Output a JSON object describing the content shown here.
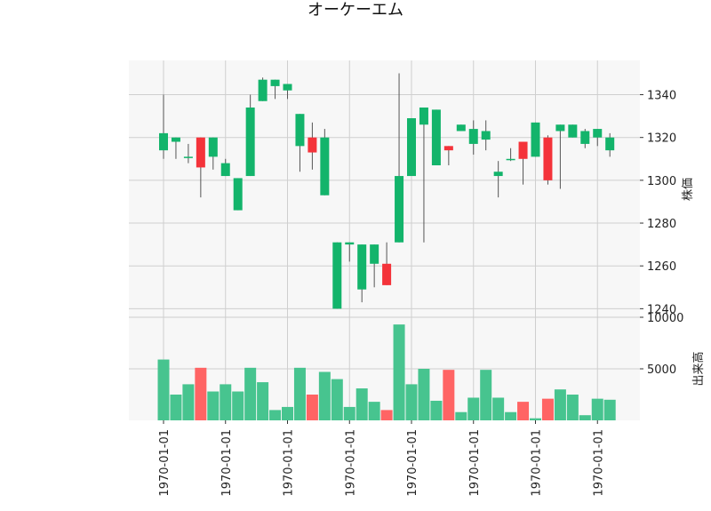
{
  "chart_data": {
    "type": "candlestick",
    "title": "オーケーエム",
    "price_axis_label": "株価",
    "volume_axis_label": "出来高",
    "price_ylim": [
      1236,
      1356
    ],
    "price_ticks": [
      "1240",
      "1260",
      "1280",
      "1300",
      "1320",
      "1340"
    ],
    "volume_ylim": [
      0,
      10000
    ],
    "volume_ticks": [
      "5000",
      "10000"
    ],
    "x_tick_labels": [
      "1970-01-01",
      "1970-01-01",
      "1970-01-01",
      "1970-01-01",
      "1970-01-01",
      "1970-01-01",
      "1970-01-01",
      "1970-01-01"
    ],
    "x_tick_indices": [
      0,
      5,
      10,
      15,
      20,
      25,
      30,
      35
    ],
    "grid": true,
    "colors": {
      "up": "#13b46b",
      "down": "#f4333a",
      "volume_up": "#47c48f",
      "volume_down": "#ff6464",
      "wick": "#555555",
      "panel_bg": "#f7f7f7",
      "grid": "#cfcfcf"
    },
    "candles": [
      {
        "open": 1314,
        "high": 1340,
        "low": 1310,
        "close": 1322,
        "volume": 5900
      },
      {
        "open": 1318,
        "high": 1320,
        "low": 1310,
        "close": 1320,
        "volume": 2500
      },
      {
        "open": 1311,
        "high": 1317,
        "low": 1308,
        "close": 1311,
        "volume": 3500
      },
      {
        "open": 1320,
        "high": 1320,
        "low": 1292,
        "close": 1306,
        "volume": 5100
      },
      {
        "open": 1311,
        "high": 1320,
        "low": 1305,
        "close": 1320,
        "volume": 2800
      },
      {
        "open": 1302,
        "high": 1310,
        "low": 1302,
        "close": 1308,
        "volume": 3500
      },
      {
        "open": 1286,
        "high": 1301,
        "low": 1286,
        "close": 1301,
        "volume": 2800
      },
      {
        "open": 1302,
        "high": 1340,
        "low": 1302,
        "close": 1334,
        "volume": 5100
      },
      {
        "open": 1337,
        "high": 1348,
        "low": 1337,
        "close": 1347,
        "volume": 3700
      },
      {
        "open": 1344,
        "high": 1347,
        "low": 1338,
        "close": 1347,
        "volume": 1000
      },
      {
        "open": 1342,
        "high": 1345,
        "low": 1338,
        "close": 1345,
        "volume": 1300
      },
      {
        "open": 1316,
        "high": 1331,
        "low": 1304,
        "close": 1331,
        "volume": 5100
      },
      {
        "open": 1320,
        "high": 1327,
        "low": 1305,
        "close": 1313,
        "volume": 2500
      },
      {
        "open": 1293,
        "high": 1324,
        "low": 1293,
        "close": 1320,
        "volume": 4700
      },
      {
        "open": 1240,
        "high": 1271,
        "low": 1240,
        "close": 1271,
        "volume": 4000
      },
      {
        "open": 1270,
        "high": 1271,
        "low": 1262,
        "close": 1271,
        "volume": 1300
      },
      {
        "open": 1249,
        "high": 1270,
        "low": 1243,
        "close": 1270,
        "volume": 3100
      },
      {
        "open": 1261,
        "high": 1270,
        "low": 1250,
        "close": 1270,
        "volume": 1800
      },
      {
        "open": 1261,
        "high": 1271,
        "low": 1251,
        "close": 1251,
        "volume": 1000
      },
      {
        "open": 1271,
        "high": 1350,
        "low": 1271,
        "close": 1302,
        "volume": 9300
      },
      {
        "open": 1302,
        "high": 1329,
        "low": 1302,
        "close": 1329,
        "volume": 3500
      },
      {
        "open": 1326,
        "high": 1334,
        "low": 1271,
        "close": 1334,
        "volume": 5000
      },
      {
        "open": 1307,
        "high": 1333,
        "low": 1307,
        "close": 1333,
        "volume": 1900
      },
      {
        "open": 1316,
        "high": 1316,
        "low": 1307,
        "close": 1314,
        "volume": 4900
      },
      {
        "open": 1323,
        "high": 1326,
        "low": 1323,
        "close": 1326,
        "volume": 800
      },
      {
        "open": 1317,
        "high": 1328,
        "low": 1312,
        "close": 1324,
        "volume": 2200
      },
      {
        "open": 1319,
        "high": 1328,
        "low": 1314,
        "close": 1323,
        "volume": 4900
      },
      {
        "open": 1302,
        "high": 1309,
        "low": 1292,
        "close": 1304,
        "volume": 2200
      },
      {
        "open": 1310,
        "high": 1315,
        "low": 1309,
        "close": 1310,
        "volume": 800
      },
      {
        "open": 1318,
        "high": 1318,
        "low": 1298,
        "close": 1310,
        "volume": 1800
      },
      {
        "open": 1311,
        "high": 1327,
        "low": 1311,
        "close": 1327,
        "volume": 200
      },
      {
        "open": 1320,
        "high": 1321,
        "low": 1298,
        "close": 1300,
        "volume": 2100
      },
      {
        "open": 1323,
        "high": 1326,
        "low": 1296,
        "close": 1326,
        "volume": 3000
      },
      {
        "open": 1320,
        "high": 1326,
        "low": 1320,
        "close": 1326,
        "volume": 2500
      },
      {
        "open": 1317,
        "high": 1324,
        "low": 1315,
        "close": 1323,
        "volume": 500
      },
      {
        "open": 1320,
        "high": 1324,
        "low": 1316,
        "close": 1324,
        "volume": 2100
      },
      {
        "open": 1314,
        "high": 1322,
        "low": 1311,
        "close": 1320,
        "volume": 2000
      }
    ]
  }
}
